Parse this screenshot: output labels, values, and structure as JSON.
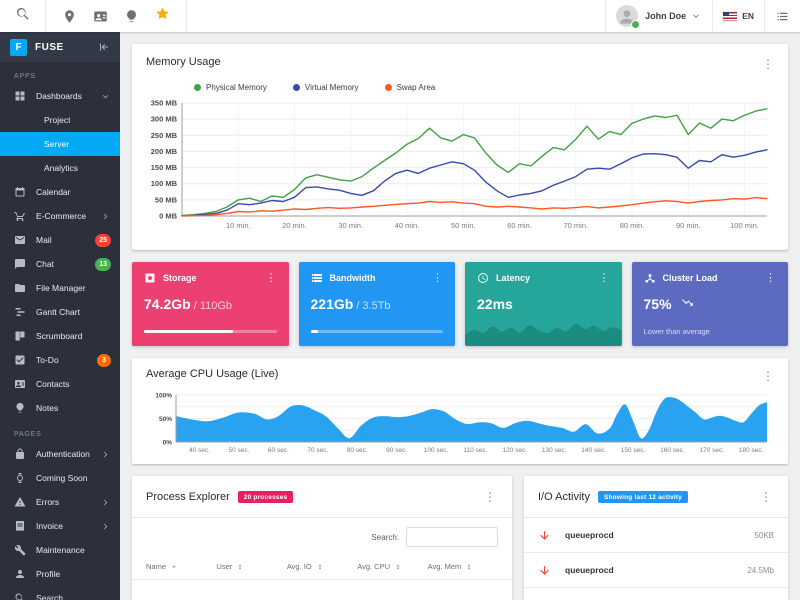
{
  "topbar": {
    "search_icon": "search",
    "shortcut_icons": [
      "place",
      "contacts",
      "lightbulb",
      "star"
    ],
    "star_color": "#fbab18",
    "user": {
      "name": "John Doe",
      "status": "online"
    },
    "language": {
      "label": "EN",
      "flag": "us-flag"
    }
  },
  "sidebar": {
    "logo_letter": "F",
    "logo_text": "FUSE",
    "accent_color": "#03a9f4",
    "sections": [
      {
        "label": "APPS",
        "items": [
          {
            "label": "Dashboards",
            "icon": "dashboard",
            "expand": "down"
          },
          {
            "label": "Project",
            "child": true
          },
          {
            "label": "Server",
            "child": true,
            "active": true
          },
          {
            "label": "Analytics",
            "child": true
          },
          {
            "label": "Calendar",
            "icon": "calendar"
          },
          {
            "label": "E-Commerce",
            "icon": "cart",
            "expand": "right"
          },
          {
            "label": "Mail",
            "icon": "mail",
            "badge": {
              "text": "25",
              "color": "#f44336"
            }
          },
          {
            "label": "Chat",
            "icon": "chat",
            "badge": {
              "text": "13",
              "color": "#4caf50"
            }
          },
          {
            "label": "File Manager",
            "icon": "folder"
          },
          {
            "label": "Gantt Chart",
            "icon": "gantt"
          },
          {
            "label": "Scrumboard",
            "icon": "board"
          },
          {
            "label": "To-Do",
            "icon": "check",
            "badge": {
              "text": "3",
              "color": "#ff6d00"
            }
          },
          {
            "label": "Contacts",
            "icon": "contacts"
          },
          {
            "label": "Notes",
            "icon": "lightbulb"
          }
        ]
      },
      {
        "label": "PAGES",
        "items": [
          {
            "label": "Authentication",
            "icon": "lock",
            "expand": "right"
          },
          {
            "label": "Coming Soon",
            "icon": "watch"
          },
          {
            "label": "Errors",
            "icon": "warning",
            "expand": "right"
          },
          {
            "label": "Invoice",
            "icon": "receipt",
            "expand": "right"
          },
          {
            "label": "Maintenance",
            "icon": "wrench"
          },
          {
            "label": "Profile",
            "icon": "person"
          },
          {
            "label": "Search",
            "icon": "search"
          }
        ]
      }
    ]
  },
  "memory": {
    "title": "Memory Usage"
  },
  "stat_cards": [
    {
      "title": "Storage",
      "icon": "harddrive",
      "color": "#ec4073",
      "value": "74.2Gb",
      "total": "/ 110Gb",
      "progress": 67
    },
    {
      "title": "Bandwidth",
      "icon": "storage",
      "color": "#2196f3",
      "value": "221Gb",
      "total": "/ 3.5Tb",
      "progress": 6
    },
    {
      "title": "Latency",
      "icon": "timer",
      "color": "#26a69a",
      "value": "22ms",
      "spark_chart_index": 2
    },
    {
      "title": "Cluster Load",
      "icon": "hub",
      "color": "#5c6bc0",
      "value": "75%",
      "trend": "down",
      "subtitle": "Lower than average"
    }
  ],
  "cpu": {
    "title": "Average CPU Usage (Live)"
  },
  "process": {
    "title": "Process Explorer",
    "badge": "20 processes",
    "badge_color": "#e91e63",
    "search_label": "Search:",
    "columns": [
      {
        "label": "Name",
        "sort": "asc"
      },
      {
        "label": "User",
        "sort": "both"
      },
      {
        "label": "Avg. IO",
        "sort": "both"
      },
      {
        "label": "Avg. CPU",
        "sort": "both"
      },
      {
        "label": "Avg. Mem",
        "sort": "both"
      }
    ]
  },
  "io": {
    "title": "I/O Activity",
    "badge": "Showing last 12 activity",
    "badge_color": "#2196f3",
    "rows": [
      {
        "direction": "down",
        "name": "queueprocd",
        "value": "50KB"
      },
      {
        "direction": "down",
        "name": "queueprocd",
        "value": "24.5Mb"
      }
    ]
  },
  "chart_data": [
    {
      "type": "line",
      "title": "Memory Usage",
      "xlim": [
        0,
        104
      ],
      "x_step": 2,
      "ylim": [
        0,
        350
      ],
      "x_ticks": [
        10,
        20,
        30,
        40,
        50,
        60,
        70,
        80,
        90,
        100
      ],
      "x_tick_suffix": " min.",
      "y_ticks": [
        "0 MB",
        "50 MB",
        "100 MB",
        "150 MB",
        "200 MB",
        "250 MB",
        "300 MB",
        "350 MB"
      ],
      "legend_position": "top",
      "grid": true,
      "series": [
        {
          "name": "Physical Memory",
          "color": "#43a047",
          "values": [
            2,
            4,
            8,
            14,
            28,
            50,
            55,
            45,
            62,
            58,
            82,
            118,
            128,
            120,
            112,
            108,
            122,
            148,
            172,
            195,
            222,
            240,
            272,
            242,
            232,
            252,
            242,
            195,
            158,
            135,
            162,
            155,
            185,
            212,
            205,
            238,
            278,
            238,
            262,
            252,
            287,
            300,
            310,
            305,
            312,
            252,
            288,
            272,
            300,
            295,
            312,
            325,
            332
          ]
        },
        {
          "name": "Virtual Memory",
          "color": "#3949ab",
          "values": [
            1,
            2,
            5,
            8,
            18,
            38,
            35,
            40,
            48,
            45,
            58,
            88,
            90,
            84,
            80,
            70,
            64,
            78,
            108,
            132,
            142,
            132,
            148,
            158,
            168,
            162,
            142,
            105,
            78,
            58,
            65,
            70,
            78,
            95,
            108,
            122,
            145,
            148,
            145,
            162,
            180,
            192,
            193,
            190,
            182,
            148,
            172,
            168,
            190,
            182,
            188,
            198,
            205
          ]
        },
        {
          "name": "Swap Area",
          "color": "#ff5722",
          "values": [
            0,
            1,
            2,
            4,
            8,
            14,
            12,
            16,
            15,
            18,
            22,
            20,
            24,
            26,
            24,
            25,
            28,
            30,
            33,
            36,
            38,
            40,
            45,
            42,
            44,
            40,
            38,
            30,
            28,
            30,
            28,
            25,
            22,
            25,
            24,
            26,
            29,
            25,
            28,
            31,
            35,
            40,
            44,
            47,
            45,
            40,
            45,
            48,
            50,
            54,
            52,
            57,
            54
          ]
        }
      ]
    },
    {
      "type": "area",
      "title": "Average CPU Usage (Live)",
      "color": "#29a3f0",
      "xlim": [
        34,
        184
      ],
      "ylim": [
        0,
        100
      ],
      "x_ticks": [
        40,
        50,
        60,
        70,
        80,
        90,
        100,
        110,
        120,
        130,
        140,
        150,
        160,
        170,
        180
      ],
      "x_tick_suffix": " sec.",
      "y_ticks": [
        "0%",
        "50%",
        "100%"
      ],
      "grid": true,
      "points": [
        [
          34,
          55
        ],
        [
          38,
          48
        ],
        [
          42,
          44
        ],
        [
          46,
          52
        ],
        [
          50,
          63
        ],
        [
          54,
          60
        ],
        [
          57,
          48
        ],
        [
          60,
          55
        ],
        [
          63,
          75
        ],
        [
          66,
          78
        ],
        [
          69,
          68
        ],
        [
          72,
          55
        ],
        [
          75,
          30
        ],
        [
          78,
          8
        ],
        [
          81,
          35
        ],
        [
          84,
          52
        ],
        [
          87,
          55
        ],
        [
          90,
          53
        ],
        [
          93,
          55
        ],
        [
          96,
          62
        ],
        [
          99,
          70
        ],
        [
          102,
          65
        ],
        [
          105,
          48
        ],
        [
          108,
          38
        ],
        [
          111,
          42
        ],
        [
          114,
          40
        ],
        [
          117,
          30
        ],
        [
          120,
          40
        ],
        [
          123,
          45
        ],
        [
          126,
          40
        ],
        [
          129,
          34
        ],
        [
          132,
          30
        ],
        [
          135,
          22
        ],
        [
          138,
          38
        ],
        [
          141,
          18
        ],
        [
          144,
          28
        ],
        [
          146,
          60
        ],
        [
          148,
          80
        ],
        [
          150,
          45
        ],
        [
          152,
          8
        ],
        [
          154,
          25
        ],
        [
          156,
          65
        ],
        [
          158,
          92
        ],
        [
          160,
          95
        ],
        [
          162,
          88
        ],
        [
          164,
          75
        ],
        [
          166,
          62
        ],
        [
          168,
          48
        ],
        [
          170,
          52
        ],
        [
          172,
          56
        ],
        [
          174,
          52
        ],
        [
          176,
          45
        ],
        [
          178,
          42
        ],
        [
          180,
          60
        ],
        [
          182,
          78
        ],
        [
          184,
          85
        ]
      ]
    },
    {
      "type": "area",
      "title": "Latency sparkline",
      "color": "rgba(0,60,50,0.25)",
      "ylim": [
        0,
        100
      ],
      "values": [
        35,
        55,
        42,
        68,
        48,
        62,
        44,
        72,
        52,
        42,
        62,
        48,
        78,
        58,
        70,
        50,
        64,
        54
      ]
    }
  ]
}
